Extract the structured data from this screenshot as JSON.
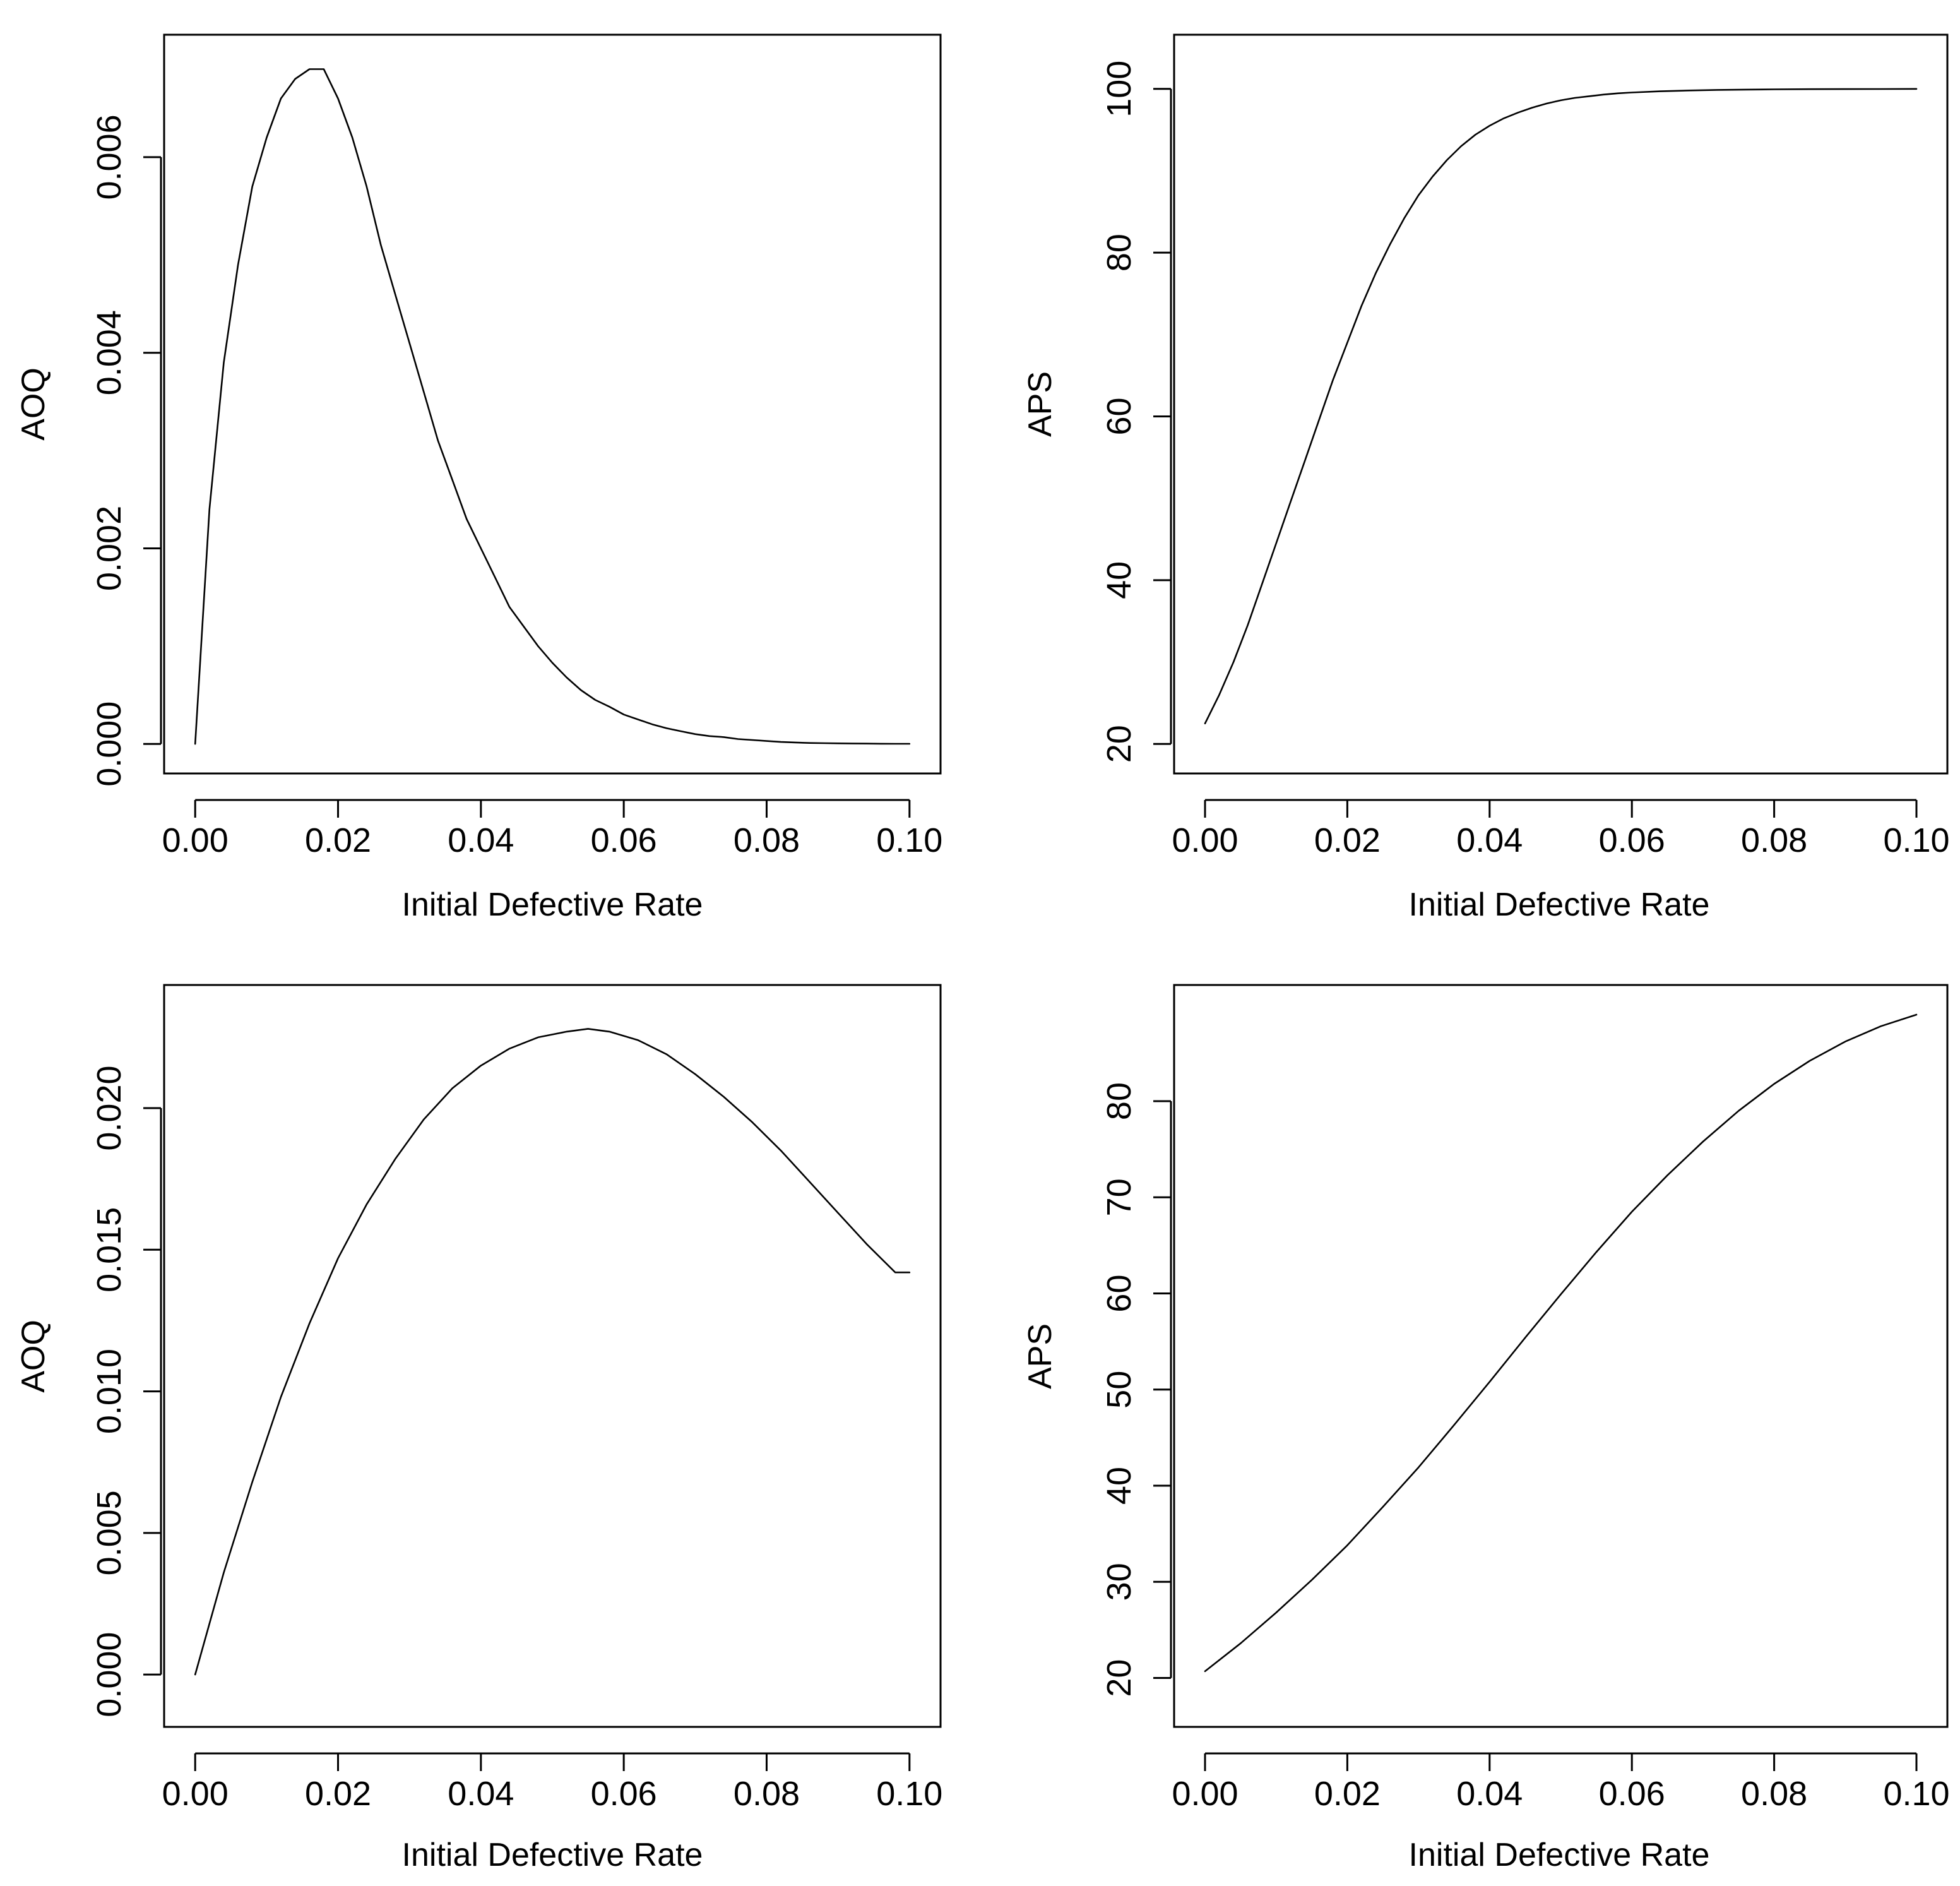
{
  "chart_data": [
    {
      "id": "top-left",
      "type": "line",
      "title": "",
      "xlabel": "Initial Defective Rate",
      "ylabel": "AOQ",
      "xlim": [
        0.0,
        0.1
      ],
      "ylim": [
        0.0,
        0.00695
      ],
      "x_ticks": [
        "0.00",
        "0.02",
        "0.04",
        "0.06",
        "0.08",
        "0.10"
      ],
      "y_ticks": [
        "0.000",
        "0.002",
        "0.004",
        "0.006"
      ],
      "series": [
        {
          "name": "AOQ",
          "x": [
            0.0,
            0.002,
            0.004,
            0.006,
            0.008,
            0.01,
            0.012,
            0.014,
            0.016,
            0.017,
            0.018,
            0.02,
            0.022,
            0.024,
            0.026,
            0.028,
            0.03,
            0.032,
            0.034,
            0.036,
            0.038,
            0.04,
            0.042,
            0.044,
            0.046,
            0.048,
            0.05,
            0.052,
            0.054,
            0.056,
            0.058,
            0.06,
            0.062,
            0.064,
            0.066,
            0.068,
            0.07,
            0.072,
            0.074,
            0.076,
            0.078,
            0.08,
            0.082,
            0.084,
            0.086,
            0.088,
            0.09,
            0.092,
            0.094,
            0.096,
            0.098,
            0.1
          ],
          "y": [
            0.0,
            0.0024,
            0.0039,
            0.0049,
            0.0057,
            0.0062,
            0.0066,
            0.0068,
            0.0069,
            0.0069,
            0.0069,
            0.0066,
            0.0062,
            0.0057,
            0.0051,
            0.0046,
            0.0041,
            0.0036,
            0.0031,
            0.0027,
            0.0023,
            0.002,
            0.0017,
            0.0014,
            0.0012,
            0.001,
            0.00083,
            0.00068,
            0.00055,
            0.00045,
            0.00038,
            0.0003,
            0.00025,
            0.0002,
            0.00016,
            0.00013,
            0.0001,
            8e-05,
            7e-05,
            5e-05,
            4e-05,
            3e-05,
            2e-05,
            1.5e-05,
            1e-05,
            8e-06,
            6e-06,
            4e-06,
            3e-06,
            2e-06,
            1e-06,
            1e-06
          ]
        }
      ]
    },
    {
      "id": "top-right",
      "type": "line",
      "title": "",
      "xlabel": "Initial Defective Rate",
      "ylabel": "APS",
      "xlim": [
        0.0,
        0.1
      ],
      "ylim": [
        20,
        103
      ],
      "x_ticks": [
        "0.00",
        "0.02",
        "0.04",
        "0.06",
        "0.08",
        "0.10"
      ],
      "y_ticks": [
        "20",
        "40",
        "60",
        "80",
        "100"
      ],
      "series": [
        {
          "name": "APS",
          "x": [
            0.0,
            0.002,
            0.004,
            0.006,
            0.008,
            0.01,
            0.012,
            0.014,
            0.016,
            0.018,
            0.02,
            0.022,
            0.024,
            0.026,
            0.028,
            0.03,
            0.032,
            0.034,
            0.036,
            0.038,
            0.04,
            0.042,
            0.044,
            0.046,
            0.048,
            0.05,
            0.052,
            0.054,
            0.056,
            0.058,
            0.06,
            0.064,
            0.068,
            0.072,
            0.076,
            0.08,
            0.085,
            0.09,
            0.095,
            0.1
          ],
          "y": [
            22.5,
            26,
            30,
            34.5,
            39.5,
            44.5,
            49.5,
            54.5,
            59.5,
            64.5,
            69,
            73.5,
            77.5,
            81,
            84.2,
            87,
            89.3,
            91.3,
            93,
            94.4,
            95.5,
            96.4,
            97.1,
            97.7,
            98.2,
            98.6,
            98.9,
            99.1,
            99.3,
            99.45,
            99.55,
            99.7,
            99.8,
            99.87,
            99.91,
            99.94,
            99.96,
            99.97,
            99.98,
            99.99
          ]
        }
      ]
    },
    {
      "id": "bottom-left",
      "type": "line",
      "title": "",
      "xlabel": "Initial Defective Rate",
      "ylabel": "AOQ",
      "xlim": [
        0.0,
        0.1
      ],
      "ylim": [
        -0.0008,
        0.0233
      ],
      "x_ticks": [
        "0.00",
        "0.02",
        "0.04",
        "0.06",
        "0.08",
        "0.10"
      ],
      "y_ticks": [
        "0.000",
        "0.005",
        "0.010",
        "0.015",
        "0.020"
      ],
      "series": [
        {
          "name": "AOQ",
          "x": [
            0.0,
            0.004,
            0.008,
            0.012,
            0.016,
            0.02,
            0.024,
            0.028,
            0.032,
            0.036,
            0.04,
            0.044,
            0.048,
            0.052,
            0.055,
            0.058,
            0.062,
            0.066,
            0.07,
            0.074,
            0.078,
            0.082,
            0.086,
            0.09,
            0.094,
            0.098,
            0.1
          ],
          "y": [
            0.0,
            0.0036,
            0.0068,
            0.0098,
            0.0124,
            0.0147,
            0.0166,
            0.0182,
            0.0196,
            0.0207,
            0.0215,
            0.0221,
            0.0225,
            0.0227,
            0.0228,
            0.0227,
            0.0224,
            0.0219,
            0.0212,
            0.0204,
            0.0195,
            0.0185,
            0.0174,
            0.0163,
            0.0152,
            0.0142,
            0.0142
          ]
        }
      ]
    },
    {
      "id": "bottom-right",
      "type": "line",
      "title": "",
      "xlabel": "Initial Defective Rate",
      "ylabel": "APS",
      "xlim": [
        0.0,
        0.1
      ],
      "ylim": [
        18,
        89
      ],
      "x_ticks": [
        "0.00",
        "0.02",
        "0.04",
        "0.06",
        "0.08",
        "0.10"
      ],
      "y_ticks": [
        "20",
        "30",
        "40",
        "50",
        "60",
        "70",
        "80"
      ],
      "series": [
        {
          "name": "APS",
          "x": [
            0.0,
            0.005,
            0.01,
            0.015,
            0.02,
            0.025,
            0.03,
            0.035,
            0.04,
            0.045,
            0.05,
            0.055,
            0.06,
            0.065,
            0.07,
            0.075,
            0.08,
            0.085,
            0.09,
            0.095,
            0.1
          ],
          "y": [
            20.7,
            23.6,
            26.8,
            30.2,
            33.8,
            37.8,
            41.9,
            46.3,
            50.8,
            55.4,
            59.9,
            64.3,
            68.5,
            72.3,
            75.8,
            79,
            81.8,
            84.2,
            86.2,
            87.8,
            89
          ]
        }
      ]
    }
  ]
}
